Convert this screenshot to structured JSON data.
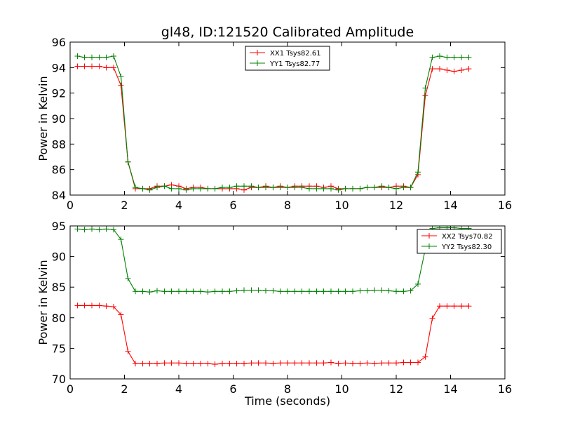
{
  "title": "gl48, ID:121520 Calibrated Amplitude",
  "colors": {
    "red": "#ff0000",
    "green": "#008000"
  },
  "chart_data": [
    {
      "type": "line",
      "ylabel": "Power in Kelvin",
      "xlabel": "",
      "xlim": [
        0,
        16
      ],
      "ylim": [
        84,
        96
      ],
      "xticks": [
        0,
        2,
        4,
        6,
        8,
        10,
        12,
        14,
        16
      ],
      "yticks": [
        84,
        86,
        88,
        90,
        92,
        94,
        96
      ],
      "legend_position": "top-center",
      "x": [
        0.27,
        0.53,
        0.8,
        1.07,
        1.33,
        1.6,
        1.87,
        2.13,
        2.4,
        2.67,
        2.93,
        3.2,
        3.47,
        3.73,
        4.0,
        4.27,
        4.53,
        4.8,
        5.07,
        5.33,
        5.6,
        5.87,
        6.13,
        6.4,
        6.67,
        6.93,
        7.2,
        7.47,
        7.73,
        8.0,
        8.27,
        8.53,
        8.8,
        9.07,
        9.33,
        9.6,
        9.87,
        10.13,
        10.4,
        10.67,
        10.93,
        11.2,
        11.47,
        11.73,
        12.0,
        12.27,
        12.53,
        12.8,
        13.07,
        13.33,
        13.6,
        13.87,
        14.13,
        14.4,
        14.67
      ],
      "series": [
        {
          "name": "XX1 Tsys82.61",
          "color": "#ff0000",
          "values": [
            94.1,
            94.1,
            94.1,
            94.1,
            94.0,
            94.0,
            92.6,
            86.6,
            84.5,
            84.5,
            84.5,
            84.7,
            84.7,
            84.8,
            84.7,
            84.5,
            84.6,
            84.6,
            84.5,
            84.5,
            84.5,
            84.5,
            84.5,
            84.4,
            84.6,
            84.6,
            84.7,
            84.6,
            84.7,
            84.6,
            84.7,
            84.7,
            84.7,
            84.7,
            84.6,
            84.7,
            84.5,
            84.5,
            84.5,
            84.5,
            84.6,
            84.6,
            84.6,
            84.6,
            84.7,
            84.7,
            84.6,
            85.6,
            91.8,
            93.9,
            93.9,
            93.8,
            93.7,
            93.8,
            93.9
          ]
        },
        {
          "name": "YY1 Tsys82.77",
          "color": "#008000",
          "values": [
            94.9,
            94.8,
            94.8,
            94.8,
            94.8,
            94.9,
            93.3,
            86.6,
            84.6,
            84.5,
            84.4,
            84.6,
            84.7,
            84.5,
            84.5,
            84.4,
            84.5,
            84.5,
            84.5,
            84.5,
            84.6,
            84.6,
            84.7,
            84.7,
            84.7,
            84.6,
            84.6,
            84.6,
            84.6,
            84.6,
            84.6,
            84.6,
            84.5,
            84.5,
            84.5,
            84.5,
            84.4,
            84.5,
            84.5,
            84.5,
            84.6,
            84.6,
            84.7,
            84.6,
            84.5,
            84.6,
            84.6,
            85.8,
            92.4,
            94.8,
            94.9,
            94.8,
            94.8,
            94.8,
            94.8
          ]
        }
      ]
    },
    {
      "type": "line",
      "ylabel": "Power in Kelvin",
      "xlabel": "Time (seconds)",
      "xlim": [
        0,
        16
      ],
      "ylim": [
        70,
        95
      ],
      "xticks": [
        0,
        2,
        4,
        6,
        8,
        10,
        12,
        14,
        16
      ],
      "yticks": [
        70,
        75,
        80,
        85,
        90,
        95
      ],
      "legend_position": "top-right",
      "x": [
        0.27,
        0.53,
        0.8,
        1.07,
        1.33,
        1.6,
        1.87,
        2.13,
        2.4,
        2.67,
        2.93,
        3.2,
        3.47,
        3.73,
        4.0,
        4.27,
        4.53,
        4.8,
        5.07,
        5.33,
        5.6,
        5.87,
        6.13,
        6.4,
        6.67,
        6.93,
        7.2,
        7.47,
        7.73,
        8.0,
        8.27,
        8.53,
        8.8,
        9.07,
        9.33,
        9.6,
        9.87,
        10.13,
        10.4,
        10.67,
        10.93,
        11.2,
        11.47,
        11.73,
        12.0,
        12.27,
        12.53,
        12.8,
        13.07,
        13.33,
        13.6,
        13.87,
        14.13,
        14.4,
        14.67
      ],
      "series": [
        {
          "name": "XX2 Tsys70.82",
          "color": "#ff0000",
          "values": [
            82.0,
            82.0,
            82.0,
            82.0,
            81.9,
            81.8,
            80.5,
            74.5,
            72.5,
            72.5,
            72.5,
            72.5,
            72.6,
            72.6,
            72.6,
            72.5,
            72.5,
            72.5,
            72.5,
            72.4,
            72.5,
            72.5,
            72.5,
            72.5,
            72.6,
            72.6,
            72.6,
            72.5,
            72.6,
            72.6,
            72.6,
            72.6,
            72.6,
            72.6,
            72.6,
            72.7,
            72.5,
            72.6,
            72.5,
            72.5,
            72.6,
            72.5,
            72.6,
            72.6,
            72.6,
            72.7,
            72.7,
            72.7,
            73.6,
            79.9,
            81.9,
            81.9,
            81.9,
            81.9,
            81.9
          ]
        },
        {
          "name": "YY2 Tsys82.30",
          "color": "#008000",
          "values": [
            94.5,
            94.4,
            94.5,
            94.4,
            94.5,
            94.4,
            92.8,
            86.4,
            84.3,
            84.3,
            84.2,
            84.4,
            84.3,
            84.3,
            84.3,
            84.3,
            84.3,
            84.3,
            84.2,
            84.3,
            84.3,
            84.3,
            84.4,
            84.5,
            84.5,
            84.5,
            84.4,
            84.4,
            84.3,
            84.3,
            84.3,
            84.3,
            84.3,
            84.3,
            84.3,
            84.3,
            84.3,
            84.3,
            84.3,
            84.4,
            84.4,
            84.5,
            84.5,
            84.4,
            84.3,
            84.3,
            84.4,
            85.5,
            91.2,
            94.6,
            94.7,
            94.7,
            94.7,
            94.6,
            94.6
          ]
        }
      ]
    }
  ]
}
